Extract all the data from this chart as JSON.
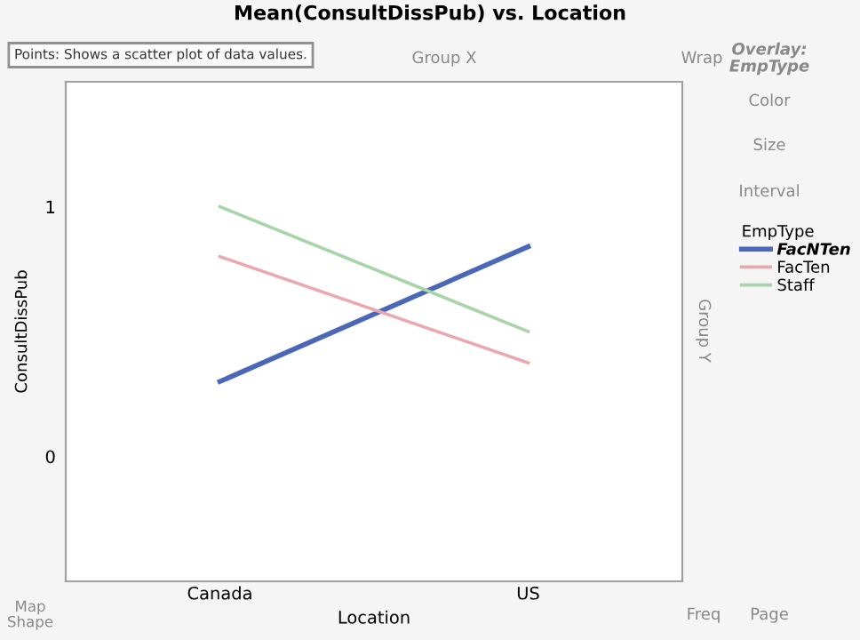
{
  "chart_data": {
    "type": "line",
    "title": "Mean(ConsultDissPub) vs. Location",
    "xlabel": "Location",
    "ylabel": "ConsultDissPub",
    "legend_title": "EmpType",
    "categories": [
      "Canada",
      "US"
    ],
    "series": [
      {
        "name": "FacNTen",
        "color": "#4a67b8",
        "values": [
          0.3,
          0.84
        ]
      },
      {
        "name": "FacTen",
        "color": "#eaa8b0",
        "values": [
          0.8,
          0.375
        ]
      },
      {
        "name": "Staff",
        "color": "#a8d4a8",
        "values": [
          1.0,
          0.5
        ]
      }
    ],
    "ylim": [
      -0.5,
      1.5
    ],
    "yticks": [
      0,
      1
    ],
    "grid": false,
    "legend": "right",
    "marker": "none",
    "line_style": "solid",
    "annotations": [
      "Points: Shows a scatter plot of data values.",
      "Group X",
      "Wrap",
      "Overlay: EmpType",
      "Color",
      "Size",
      "Interval",
      "Group Y",
      "Map Shape",
      "Freq",
      "Page"
    ]
  }
}
